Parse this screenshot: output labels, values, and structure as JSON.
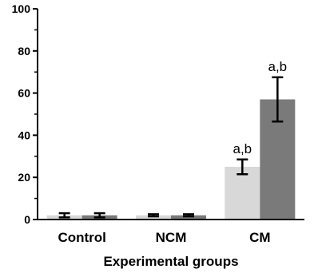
{
  "chart_data": {
    "type": "bar",
    "xlabel": "Experimental groups",
    "ylabel": "",
    "ylim": [
      0,
      100
    ],
    "yticks": [
      0,
      20,
      40,
      60,
      80,
      100
    ],
    "categories": [
      "Control",
      "NCM",
      "CM"
    ],
    "grid": false,
    "series": [
      {
        "color": "#d8d8d8",
        "values": [
          2,
          2,
          25
        ],
        "errors": [
          1,
          0.5,
          3.5
        ],
        "annotations": [
          "",
          "",
          "a,b"
        ]
      },
      {
        "color": "#7a7a7a",
        "values": [
          2,
          2,
          57
        ],
        "errors": [
          1,
          0.5,
          10.5
        ],
        "annotations": [
          "",
          "",
          "a,b"
        ]
      }
    ]
  }
}
